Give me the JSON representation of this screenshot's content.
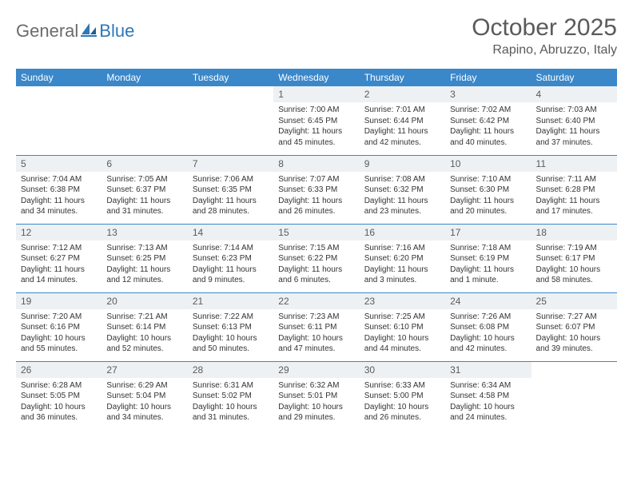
{
  "brand": {
    "part1": "General",
    "part2": "Blue"
  },
  "title": "October 2025",
  "location": "Rapino, Abruzzo, Italy",
  "colors": {
    "header_bg": "#3a87c9",
    "header_text": "#ffffff",
    "daynum_bg": "#eef1f3",
    "border": "#3a87c9",
    "title_color": "#5a5a5a",
    "brand_gray": "#6b6b6b",
    "brand_blue": "#2e77b8"
  },
  "dayNames": [
    "Sunday",
    "Monday",
    "Tuesday",
    "Wednesday",
    "Thursday",
    "Friday",
    "Saturday"
  ],
  "weeks": [
    [
      null,
      null,
      null,
      {
        "n": "1",
        "sr": "7:00 AM",
        "ss": "6:45 PM",
        "dl": "11 hours and 45 minutes."
      },
      {
        "n": "2",
        "sr": "7:01 AM",
        "ss": "6:44 PM",
        "dl": "11 hours and 42 minutes."
      },
      {
        "n": "3",
        "sr": "7:02 AM",
        "ss": "6:42 PM",
        "dl": "11 hours and 40 minutes."
      },
      {
        "n": "4",
        "sr": "7:03 AM",
        "ss": "6:40 PM",
        "dl": "11 hours and 37 minutes."
      }
    ],
    [
      {
        "n": "5",
        "sr": "7:04 AM",
        "ss": "6:38 PM",
        "dl": "11 hours and 34 minutes."
      },
      {
        "n": "6",
        "sr": "7:05 AM",
        "ss": "6:37 PM",
        "dl": "11 hours and 31 minutes."
      },
      {
        "n": "7",
        "sr": "7:06 AM",
        "ss": "6:35 PM",
        "dl": "11 hours and 28 minutes."
      },
      {
        "n": "8",
        "sr": "7:07 AM",
        "ss": "6:33 PM",
        "dl": "11 hours and 26 minutes."
      },
      {
        "n": "9",
        "sr": "7:08 AM",
        "ss": "6:32 PM",
        "dl": "11 hours and 23 minutes."
      },
      {
        "n": "10",
        "sr": "7:10 AM",
        "ss": "6:30 PM",
        "dl": "11 hours and 20 minutes."
      },
      {
        "n": "11",
        "sr": "7:11 AM",
        "ss": "6:28 PM",
        "dl": "11 hours and 17 minutes."
      }
    ],
    [
      {
        "n": "12",
        "sr": "7:12 AM",
        "ss": "6:27 PM",
        "dl": "11 hours and 14 minutes."
      },
      {
        "n": "13",
        "sr": "7:13 AM",
        "ss": "6:25 PM",
        "dl": "11 hours and 12 minutes."
      },
      {
        "n": "14",
        "sr": "7:14 AM",
        "ss": "6:23 PM",
        "dl": "11 hours and 9 minutes."
      },
      {
        "n": "15",
        "sr": "7:15 AM",
        "ss": "6:22 PM",
        "dl": "11 hours and 6 minutes."
      },
      {
        "n": "16",
        "sr": "7:16 AM",
        "ss": "6:20 PM",
        "dl": "11 hours and 3 minutes."
      },
      {
        "n": "17",
        "sr": "7:18 AM",
        "ss": "6:19 PM",
        "dl": "11 hours and 1 minute."
      },
      {
        "n": "18",
        "sr": "7:19 AM",
        "ss": "6:17 PM",
        "dl": "10 hours and 58 minutes."
      }
    ],
    [
      {
        "n": "19",
        "sr": "7:20 AM",
        "ss": "6:16 PM",
        "dl": "10 hours and 55 minutes."
      },
      {
        "n": "20",
        "sr": "7:21 AM",
        "ss": "6:14 PM",
        "dl": "10 hours and 52 minutes."
      },
      {
        "n": "21",
        "sr": "7:22 AM",
        "ss": "6:13 PM",
        "dl": "10 hours and 50 minutes."
      },
      {
        "n": "22",
        "sr": "7:23 AM",
        "ss": "6:11 PM",
        "dl": "10 hours and 47 minutes."
      },
      {
        "n": "23",
        "sr": "7:25 AM",
        "ss": "6:10 PM",
        "dl": "10 hours and 44 minutes."
      },
      {
        "n": "24",
        "sr": "7:26 AM",
        "ss": "6:08 PM",
        "dl": "10 hours and 42 minutes."
      },
      {
        "n": "25",
        "sr": "7:27 AM",
        "ss": "6:07 PM",
        "dl": "10 hours and 39 minutes."
      }
    ],
    [
      {
        "n": "26",
        "sr": "6:28 AM",
        "ss": "5:05 PM",
        "dl": "10 hours and 36 minutes."
      },
      {
        "n": "27",
        "sr": "6:29 AM",
        "ss": "5:04 PM",
        "dl": "10 hours and 34 minutes."
      },
      {
        "n": "28",
        "sr": "6:31 AM",
        "ss": "5:02 PM",
        "dl": "10 hours and 31 minutes."
      },
      {
        "n": "29",
        "sr": "6:32 AM",
        "ss": "5:01 PM",
        "dl": "10 hours and 29 minutes."
      },
      {
        "n": "30",
        "sr": "6:33 AM",
        "ss": "5:00 PM",
        "dl": "10 hours and 26 minutes."
      },
      {
        "n": "31",
        "sr": "6:34 AM",
        "ss": "4:58 PM",
        "dl": "10 hours and 24 minutes."
      },
      null
    ]
  ],
  "labels": {
    "sunrise": "Sunrise: ",
    "sunset": "Sunset: ",
    "daylight": "Daylight: "
  }
}
